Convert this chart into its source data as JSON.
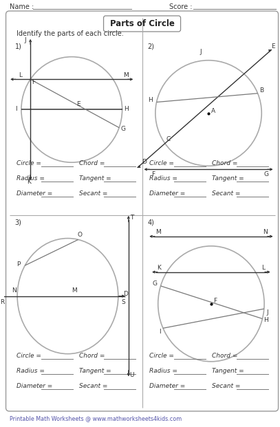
{
  "title": "Parts of Circle",
  "header_left": "Name : ",
  "header_right": "Score : ",
  "instruction": "Identify the parts of each circle.",
  "footer": "Printable Math Worksheets @ www.mathworksheets4kids.com",
  "bg_color": "#ffffff",
  "fields": [
    [
      "Circle = ",
      "Chord = "
    ],
    [
      "Radius = ",
      "Tangent = "
    ],
    [
      "Diameter = ",
      "Secant = "
    ]
  ]
}
